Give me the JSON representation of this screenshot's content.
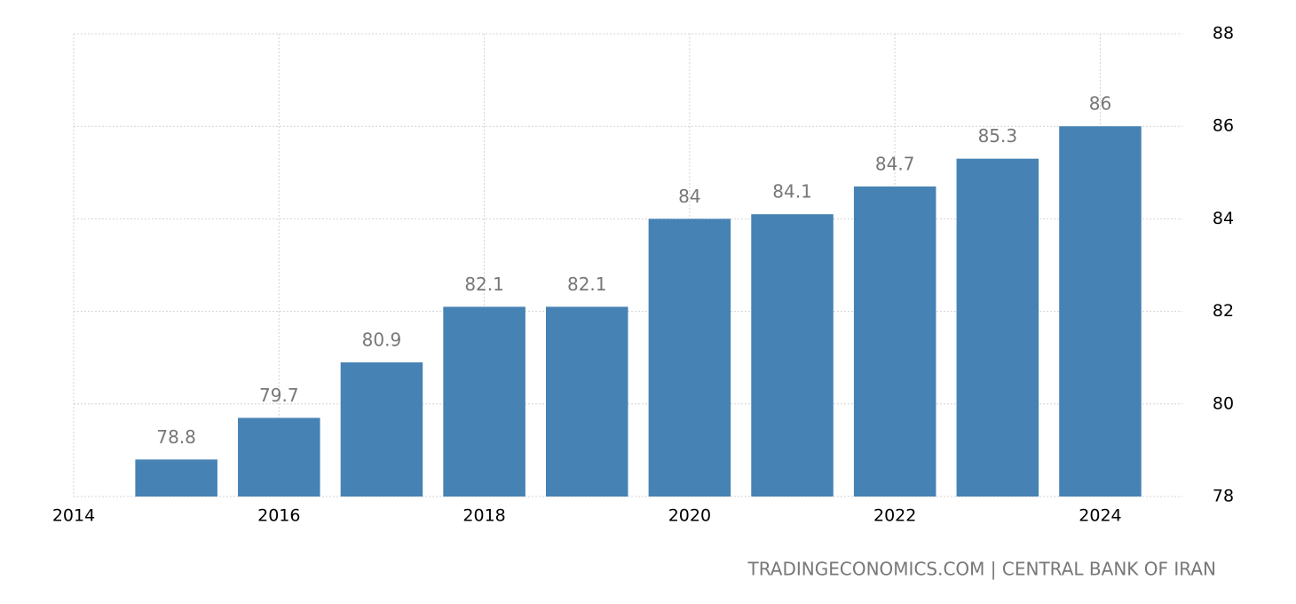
{
  "chart_data": {
    "type": "bar",
    "x": [
      2015,
      2016,
      2017,
      2018,
      2019,
      2020,
      2021,
      2022,
      2023,
      2024
    ],
    "values": [
      78.8,
      79.7,
      80.9,
      82.1,
      82.1,
      84,
      84.1,
      84.7,
      85.3,
      86
    ],
    "color": "#4682b4",
    "xlim": [
      2014,
      2024.8
    ],
    "xticks": [
      2014,
      2016,
      2018,
      2020,
      2022,
      2024
    ],
    "ylim": [
      78,
      88
    ],
    "yticks": [
      78,
      80,
      82,
      84,
      86,
      88
    ],
    "grid": true,
    "source": "TRADINGECONOMICS.COM | CENTRAL BANK OF IRAN"
  }
}
